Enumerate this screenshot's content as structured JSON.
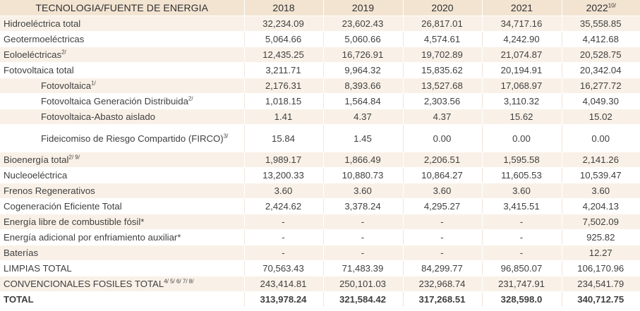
{
  "header": {
    "label": "TECNOLOGIA/FUENTE DE ENERGIA",
    "years": [
      "2018",
      "2019",
      "2020",
      "2021",
      "2022"
    ],
    "last_year_note": "10/"
  },
  "rows": [
    {
      "label": "Hidroeléctrica total",
      "note": "",
      "values": [
        "32,234.09",
        "23,602.43",
        "26,817.01",
        "34,717.16",
        "35,558.85"
      ]
    },
    {
      "label": "Geotermoeléctricas",
      "note": "",
      "values": [
        "5,064.66",
        "5,060.66",
        "4,574.61",
        "4,242.90",
        "4,412.68"
      ]
    },
    {
      "label": "Eoloeléctricas",
      "note": "2/",
      "values": [
        "12,435.25",
        "16,726.91",
        "19,702.89",
        "21,074.87",
        "20,528.75"
      ]
    },
    {
      "label": "Fotovoltaica total",
      "note": "",
      "values": [
        "3,211.71",
        "9,964.32",
        "15,835.62",
        "20,194.91",
        "20,342.04"
      ]
    },
    {
      "label": "Fotovoltaica",
      "note": "1/",
      "indent": true,
      "values": [
        "2,176.31",
        "8,393.66",
        "13,527.68",
        "17,068.97",
        "16,277.72"
      ]
    },
    {
      "label": "Fotovoltaica Generación Distribuida",
      "note": "2/",
      "indent": true,
      "values": [
        "1,018.15",
        "1,564.84",
        "2,303.56",
        "3,110.32",
        "4,049.30"
      ]
    },
    {
      "label": "Fotovoltaica-Abasto aislado",
      "note": "",
      "indent": true,
      "values": [
        "1.41",
        "4.37",
        "4.37",
        "15.62",
        "15.02"
      ]
    },
    {
      "label": "Fideicomiso de Riesgo Compartido (FIRCO)",
      "note": "3/",
      "indent": true,
      "tall": true,
      "values": [
        "15.84",
        "1.45",
        "0.00",
        "0.00",
        "0.00"
      ]
    },
    {
      "label": "Bioenergía total",
      "note": "2/ 9/",
      "values": [
        "1,989.17",
        "1,866.49",
        "2,206.51",
        "1,595.58",
        "2,141.26"
      ]
    },
    {
      "label": "Nucleoeléctrica",
      "note": "",
      "values": [
        "13,200.33",
        "10,880.73",
        "10,864.27",
        "11,605.53",
        "10,539.47"
      ]
    },
    {
      "label": "Frenos Regenerativos",
      "note": "",
      "values": [
        "3.60",
        "3.60",
        "3.60",
        "3.60",
        "3.60"
      ]
    },
    {
      "label": "Cogeneración Eficiente Total",
      "note": "",
      "values": [
        "2,424.62",
        "3,378.24",
        "4,295.27",
        "3,415.51",
        "4,204.13"
      ]
    },
    {
      "label": "Energía libre de combustible fósil*",
      "note": "",
      "values": [
        "-",
        "-",
        "-",
        "-",
        "7,502.09"
      ]
    },
    {
      "label": "Energía adicional por enfriamiento auxiliar*",
      "note": "",
      "values": [
        "-",
        "-",
        "-",
        "-",
        "925.82"
      ]
    },
    {
      "label": "Baterías",
      "note": "",
      "values": [
        "-",
        "-",
        "-",
        "-",
        "12.27"
      ]
    },
    {
      "label": "LIMPIAS TOTAL",
      "note": "",
      "values": [
        "70,563.43",
        "71,483.39",
        "84,299.77",
        "96,850.07",
        "106,170.96"
      ]
    },
    {
      "label": "CONVENCIONALES FOSILES TOTAL",
      "note": "4/ 5/ 6/ 7/ 8/",
      "values": [
        "243,414.81",
        "250,101.03",
        "232,968.74",
        "231,747.91",
        "234,541.79"
      ]
    },
    {
      "label": "TOTAL",
      "note": "",
      "total": true,
      "values": [
        "313,978.24",
        "321,584.42",
        "317,268.51",
        "328,598.0",
        "340,712.75"
      ]
    }
  ]
}
